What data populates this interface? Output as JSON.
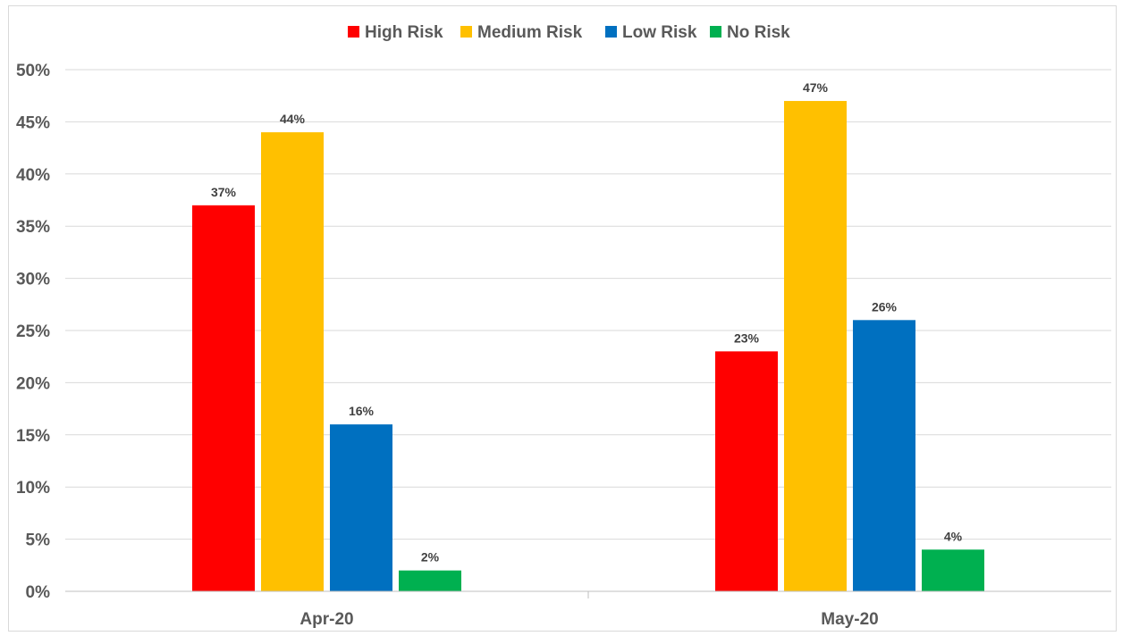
{
  "chart_data": {
    "type": "bar",
    "categories": [
      "Apr-20",
      "May-20"
    ],
    "series": [
      {
        "name": "High Risk",
        "color": "#ff0000",
        "values": [
          37,
          23
        ],
        "labels": [
          "37%",
          "23%"
        ]
      },
      {
        "name": "Medium Risk",
        "color": "#ffc000",
        "values": [
          44,
          47
        ],
        "labels": [
          "44%",
          "47%"
        ]
      },
      {
        "name": "Low Risk",
        "color": "#0070c0",
        "values": [
          16,
          26
        ],
        "labels": [
          "16%",
          "26%"
        ]
      },
      {
        "name": "No Risk",
        "color": "#00b050",
        "values": [
          2,
          4
        ],
        "labels": [
          "2%",
          "4%"
        ]
      }
    ],
    "yticks": [
      "0%",
      "5%",
      "10%",
      "15%",
      "20%",
      "25%",
      "30%",
      "35%",
      "40%",
      "45%",
      "50%"
    ],
    "ylim": [
      0,
      50
    ],
    "grid": true,
    "legend_position": "top-center",
    "title": "",
    "xlabel": "",
    "ylabel": ""
  }
}
